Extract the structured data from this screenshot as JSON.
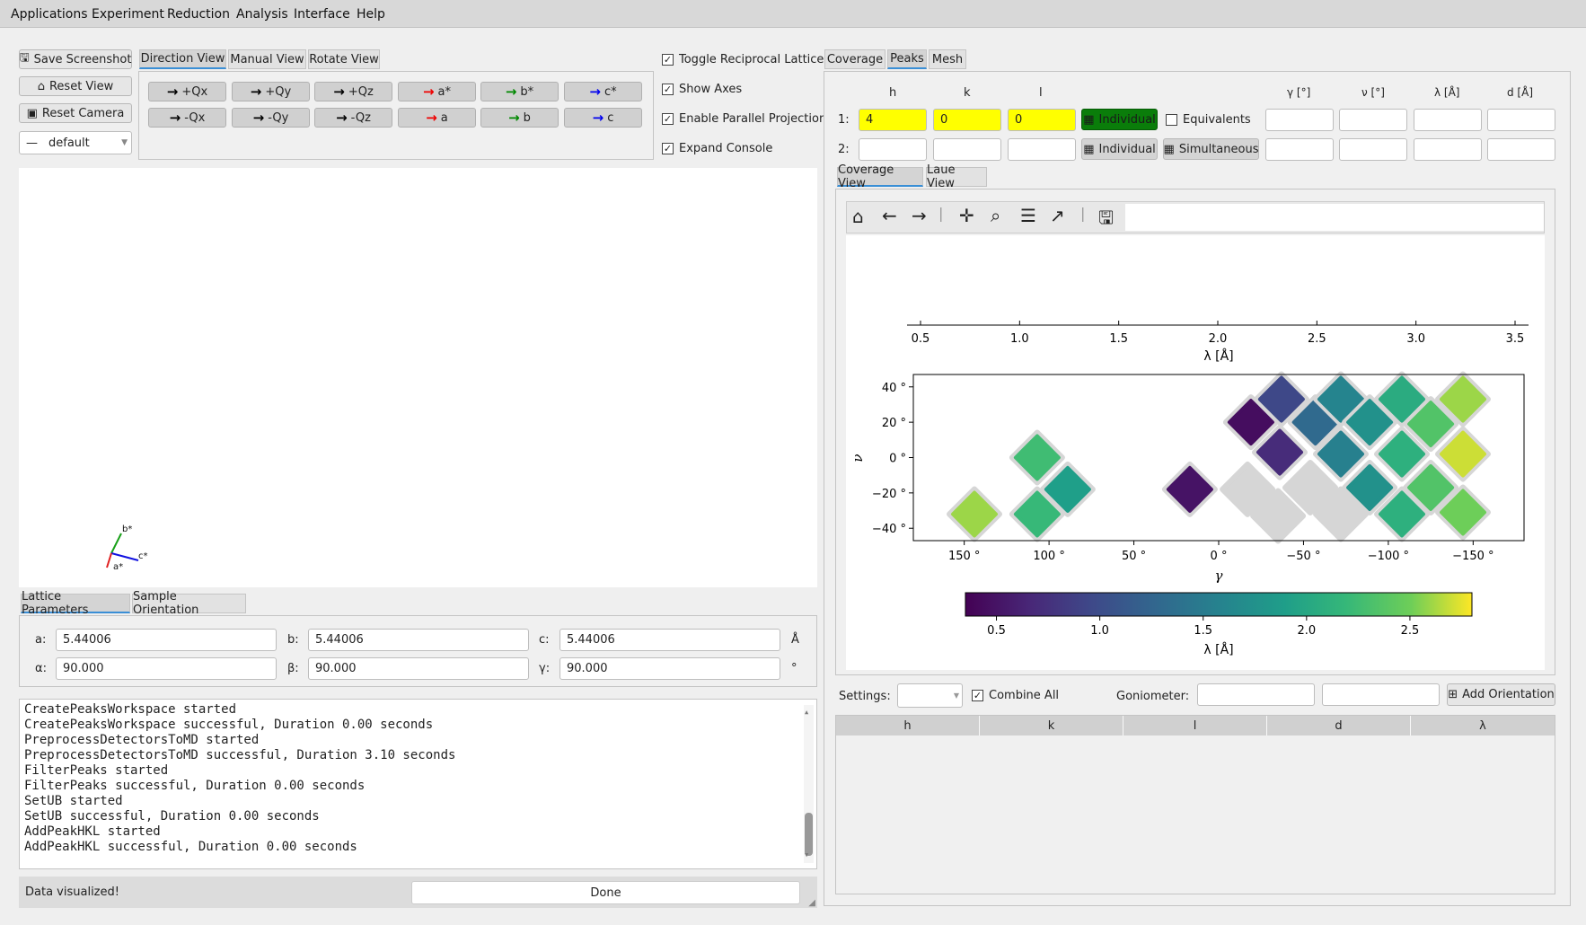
{
  "menu": [
    "Applications",
    "Experiment",
    "Reduction",
    "Analysis",
    "Interface",
    "Help"
  ],
  "left": {
    "save_screenshot": "Save Screenshot",
    "reset_view": "Reset View",
    "reset_camera": "Reset Camera",
    "camera_select": "default",
    "view_tabs": [
      "Direction View",
      "Manual View",
      "Rotate View"
    ],
    "dir_row1": [
      "+Qx",
      "+Qy",
      "+Qz",
      "a*",
      "b*",
      "c*"
    ],
    "dir_row2": [
      "-Qx",
      "-Qy",
      "-Qz",
      "a",
      "b",
      "c"
    ],
    "checks": [
      "Toggle Reciprocal Lattice",
      "Show Axes",
      "Enable Parallel Projection",
      "Expand Console"
    ],
    "axes_labels": [
      "b*",
      "c*",
      "a*"
    ],
    "param_tabs": [
      "Lattice Parameters",
      "Sample Orientation"
    ],
    "lattice": {
      "a_label": "a:",
      "a": "5.44006",
      "b_label": "b:",
      "b": "5.44006",
      "c_label": "c:",
      "c": "5.44006",
      "length_unit": "Å",
      "alpha_label": "α:",
      "alpha": "90.000",
      "beta_label": "β:",
      "beta": "90.000",
      "gamma_label": "γ:",
      "gamma": "90.000",
      "angle_unit": "°"
    },
    "console": [
      "CreatePeaksWorkspace started",
      "CreatePeaksWorkspace successful, Duration 0.00 seconds",
      "PreprocessDetectorsToMD started",
      "PreprocessDetectorsToMD successful, Duration 3.10 seconds",
      "FilterPeaks started",
      "FilterPeaks successful, Duration 0.00 seconds",
      "SetUB started",
      "SetUB successful, Duration 0.00 seconds",
      "AddPeakHKL started",
      "AddPeakHKL successful, Duration 0.00 seconds"
    ],
    "status": "Data visualized!",
    "done_button": "Done"
  },
  "right": {
    "tabs": [
      "Coverage",
      "Peaks",
      "Mesh"
    ],
    "headers": [
      "h",
      "k",
      "l",
      "γ [°]",
      "ν [°]",
      "λ [Å]",
      "d [Å]"
    ],
    "row1_label": "1:",
    "row1": {
      "h": "4",
      "k": "0",
      "l": "0"
    },
    "row2_label": "2:",
    "individual": "Individual",
    "equivalents": "Equivalents",
    "simultaneous": "Simultaneous",
    "plot_tabs": [
      "Coverage View",
      "Laue View"
    ],
    "settings_label": "Settings:",
    "combine_all": "Combine All",
    "goniometer_label": "Goniometer:",
    "add_orientation": "Add Orientation",
    "table_headers": [
      "h",
      "k",
      "l",
      "d",
      "λ"
    ]
  },
  "chart_data": {
    "type": "scatter",
    "top_axis": {
      "label": "λ [Å]",
      "ticks": [
        "0.5",
        "1.0",
        "1.5",
        "2.0",
        "2.5",
        "3.0",
        "3.5"
      ]
    },
    "xlabel": "γ",
    "ylabel": "ν",
    "xticks": [
      "150 °",
      "100 °",
      "50 °",
      "0 °",
      "−50 °",
      "−100 °",
      "−150 °"
    ],
    "yticks": [
      "40 °",
      "20 °",
      "0 °",
      "−20 °",
      "−40 °"
    ],
    "xlim": [
      180,
      -180
    ],
    "ylim": [
      -47,
      47
    ],
    "colorbar": {
      "label": "λ [Å]",
      "ticks": [
        "0.5",
        "1.0",
        "1.5",
        "2.0",
        "2.5"
      ],
      "range": [
        0.35,
        2.8
      ],
      "colormap": "viridis"
    },
    "detector_tiles": [
      {
        "gamma": 144,
        "nu": -32,
        "lambda": 2.6
      },
      {
        "gamma": 107,
        "nu": 0,
        "lambda": 2.25
      },
      {
        "gamma": 89,
        "nu": -18,
        "lambda": 1.9
      },
      {
        "gamma": 107,
        "nu": -32,
        "lambda": 2.2
      },
      {
        "gamma": 17,
        "nu": -18,
        "lambda": 0.5
      },
      {
        "gamma": -19,
        "nu": 20,
        "lambda": 0.45
      },
      {
        "gamma": -37,
        "nu": 33,
        "lambda": 0.95
      },
      {
        "gamma": -36,
        "nu": 3,
        "lambda": 0.7
      },
      {
        "gamma": -57,
        "nu": 20,
        "lambda": 1.3
      },
      {
        "gamma": -72,
        "nu": 33,
        "lambda": 1.6
      },
      {
        "gamma": -72,
        "nu": 2,
        "lambda": 1.55
      },
      {
        "gamma": -89,
        "nu": 20,
        "lambda": 1.75
      },
      {
        "gamma": -108,
        "nu": 33,
        "lambda": 2.05
      },
      {
        "gamma": -89,
        "nu": -17,
        "lambda": 1.75
      },
      {
        "gamma": -108,
        "nu": 2,
        "lambda": 2.1
      },
      {
        "gamma": -125,
        "nu": 19,
        "lambda": 2.35
      },
      {
        "gamma": -144,
        "nu": 33,
        "lambda": 2.6
      },
      {
        "gamma": -108,
        "nu": -32,
        "lambda": 2.1
      },
      {
        "gamma": -125,
        "nu": -17,
        "lambda": 2.35
      },
      {
        "gamma": -144,
        "nu": 2,
        "lambda": 2.7
      },
      {
        "gamma": -144,
        "nu": -31,
        "lambda": 2.5
      }
    ],
    "empty_tiles": [
      {
        "gamma": -17,
        "nu": -18
      },
      {
        "gamma": -35,
        "nu": -33
      },
      {
        "gamma": -54,
        "nu": -17
      },
      {
        "gamma": -72,
        "nu": -32
      }
    ]
  }
}
